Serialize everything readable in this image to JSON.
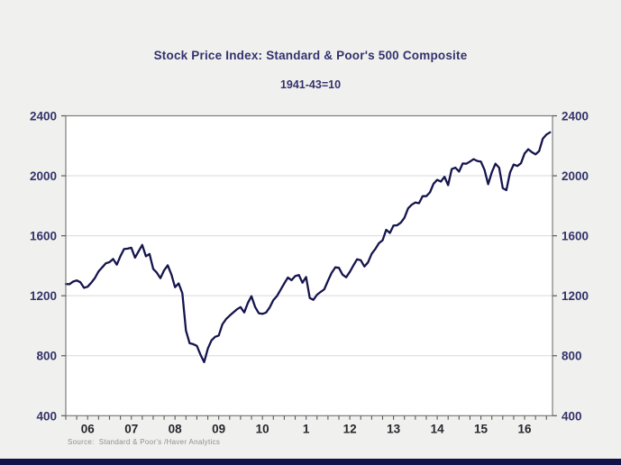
{
  "chart_data": {
    "type": "line",
    "title": "Stock Price Index: Standard & Poor's 500 Composite",
    "subtitle": "1941-43=10",
    "source": "Source:  Standard & Poor's /Haver Analytics",
    "frequency": "monthly",
    "x_start": "2006-01",
    "x_end": "2017-02",
    "ylim": [
      400,
      2400
    ],
    "y_ticks": [
      400,
      800,
      1200,
      1600,
      2000,
      2400
    ],
    "x_tick_labels": [
      "06",
      "07",
      "08",
      "09",
      "10",
      "1",
      "12",
      "13",
      "14",
      "15",
      "16"
    ],
    "x_minor_tick_interval_months": 3,
    "grid": true,
    "dual_y_axis": true,
    "legend": "none",
    "series": [
      {
        "name": "S&P 500 Composite (1941-43=10)",
        "values": [
          1278,
          1277,
          1294,
          1302,
          1290,
          1253,
          1260,
          1287,
          1318,
          1363,
          1389,
          1416,
          1424,
          1445,
          1407,
          1464,
          1511,
          1514,
          1520,
          1454,
          1497,
          1539,
          1463,
          1479,
          1379,
          1354,
          1317,
          1370,
          1403,
          1341,
          1257,
          1282,
          1217,
          968,
          883,
          877,
          866,
          806,
          757,
          848,
          902,
          926,
          935,
          1009,
          1044,
          1067,
          1088,
          1110,
          1124,
          1089,
          1152,
          1197,
          1125,
          1083,
          1079,
          1088,
          1122,
          1171,
          1198,
          1241,
          1282,
          1321,
          1304,
          1331,
          1338,
          1287,
          1325,
          1185,
          1173,
          1207,
          1226,
          1243,
          1300,
          1352,
          1389,
          1386,
          1341,
          1323,
          1359,
          1403,
          1443,
          1437,
          1395,
          1422,
          1480,
          1512,
          1550,
          1570,
          1640,
          1619,
          1668,
          1670,
          1687,
          1720,
          1783,
          1807,
          1822,
          1817,
          1864,
          1864,
          1889,
          1947,
          1973,
          1961,
          1993,
          1937,
          2045,
          2054,
          2028,
          2082,
          2080,
          2095,
          2111,
          2099,
          2094,
          2039,
          1944,
          2024,
          2080,
          2054,
          1918,
          1904,
          2022,
          2075,
          2065,
          2083,
          2148,
          2177,
          2157,
          2143,
          2165,
          2247,
          2275,
          2290
        ]
      }
    ],
    "colors": {
      "background": "#f0f0ee",
      "plot_background": "#ffffff",
      "line": "#15154e",
      "grid": "#d9d9d9",
      "frame": "#7d7d7d",
      "tick": "#5a5a5a",
      "y_label": "#33336b",
      "x_label": "#26262e",
      "title": "#32326e",
      "source": "#8f8f8f",
      "bottom_strip": "#12124a"
    }
  }
}
